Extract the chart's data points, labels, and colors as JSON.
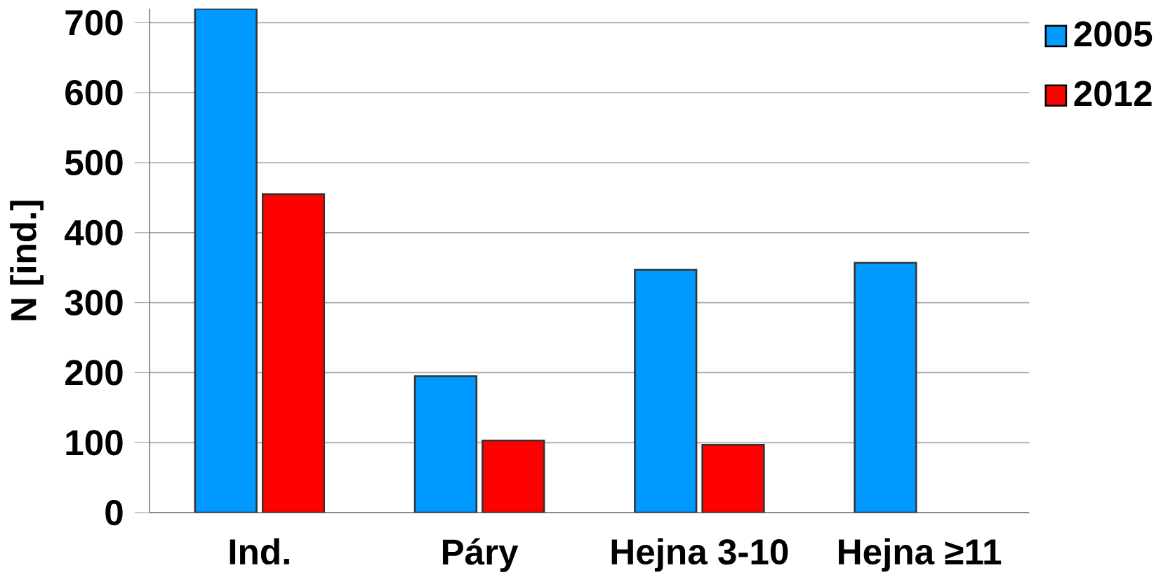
{
  "chart_data": {
    "type": "bar",
    "ylabel": "N [ind.]",
    "categories": [
      "Ind.",
      "Páry",
      "Hejna 3-10",
      "Hejna ≥11"
    ],
    "series": [
      {
        "name": "2005",
        "color": "#0099ff",
        "values": [
          720,
          195,
          347,
          357
        ]
      },
      {
        "name": "2012",
        "color": "#ff0000",
        "values": [
          455,
          103,
          97,
          null
        ]
      }
    ],
    "ylim": [
      0,
      720
    ],
    "yticks": [
      0,
      100,
      200,
      300,
      400,
      500,
      600,
      700
    ],
    "grid": "y",
    "legend": "top right"
  }
}
